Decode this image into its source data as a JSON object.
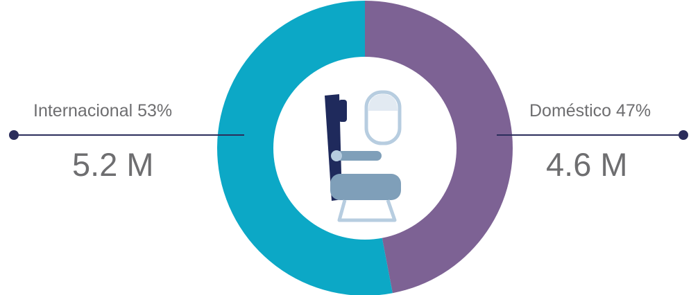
{
  "chart_data": {
    "type": "pie",
    "variant": "donut",
    "slices": [
      {
        "label": "Internacional",
        "percent": 53,
        "value_label": "5.2 M",
        "color": "#0ca8c6"
      },
      {
        "label": "Doméstico",
        "percent": 47,
        "value_label": "4.6 M",
        "color": "#7d6294"
      }
    ],
    "start_angle": "top",
    "direction": "clockwise_from_domestico",
    "center_icon": "airplane-seat-icon",
    "leader_color": "#2b2d5b"
  },
  "labels": {
    "internacional": {
      "percent_text": "Internacional 53%",
      "value_text": "5.2 M"
    },
    "domestico": {
      "percent_text": "Doméstico 47%",
      "value_text": "4.6 M"
    }
  },
  "colors": {
    "internacional": "#0ca8c6",
    "domestico": "#7d6294",
    "text": "#6e6e70",
    "seat_dark": "#1f2a5c",
    "seat_mid": "#7f9fb9",
    "seat_light": "#b7cde0"
  }
}
